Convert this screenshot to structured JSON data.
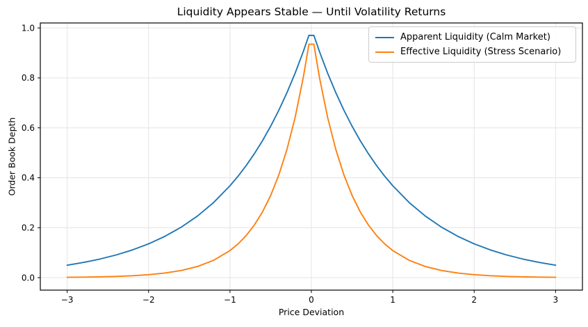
{
  "chart_data": {
    "type": "line",
    "title": "Liquidity Appears Stable — Until Volatility Returns",
    "xlabel": "Price Deviation",
    "ylabel": "Order Book Depth",
    "xlim": [
      -3.33,
      3.33
    ],
    "ylim": [
      -0.05,
      1.02
    ],
    "xticks": [
      -3,
      -2,
      -1,
      0,
      1,
      2,
      3
    ],
    "xtick_labels": [
      "−3",
      "−2",
      "−1",
      "0",
      "1",
      "2",
      "3"
    ],
    "yticks": [
      0.0,
      0.2,
      0.4,
      0.6,
      0.8,
      1.0
    ],
    "ytick_labels": [
      "0.0",
      "0.2",
      "0.4",
      "0.6",
      "0.8",
      "1.0"
    ],
    "grid": true,
    "grid_color": "#e4e4e4",
    "spine_color": "#000000",
    "tick_color": "#000000",
    "legend_position": "upper right",
    "x": [
      -3.0,
      -2.8,
      -2.6,
      -2.4,
      -2.2,
      -2.0,
      -1.8,
      -1.6,
      -1.4,
      -1.2,
      -1.0,
      -0.9,
      -0.8,
      -0.7,
      -0.6,
      -0.5,
      -0.4,
      -0.3,
      -0.2,
      -0.1,
      -0.0303,
      0.0303,
      0.1,
      0.2,
      0.3,
      0.4,
      0.5,
      0.6,
      0.7,
      0.8,
      0.9,
      1.0,
      1.2,
      1.4,
      1.6,
      1.8,
      2.0,
      2.2,
      2.4,
      2.6,
      2.8,
      3.0
    ],
    "series": [
      {
        "name": "Apparent Liquidity (Calm Market)",
        "color": "#1f77b4",
        "values": [
          0.0498,
          0.0608,
          0.0743,
          0.0907,
          0.1108,
          0.1353,
          0.1653,
          0.2019,
          0.2466,
          0.3012,
          0.3679,
          0.4066,
          0.4493,
          0.4966,
          0.5488,
          0.6065,
          0.6703,
          0.7408,
          0.8187,
          0.9048,
          0.9702,
          0.9702,
          0.9048,
          0.8187,
          0.7408,
          0.6703,
          0.6065,
          0.5488,
          0.4966,
          0.4493,
          0.4066,
          0.3679,
          0.3012,
          0.2466,
          0.2019,
          0.1653,
          0.1353,
          0.1108,
          0.0907,
          0.0743,
          0.0608,
          0.0498
        ]
      },
      {
        "name": "Effective Liquidity (Stress Scenario)",
        "color": "#ff7f0e",
        "values": [
          0.0013,
          0.002,
          0.0031,
          0.0048,
          0.0075,
          0.0117,
          0.0183,
          0.0286,
          0.0446,
          0.0695,
          0.1084,
          0.1353,
          0.169,
          0.2111,
          0.2636,
          0.3292,
          0.4111,
          0.5134,
          0.6412,
          0.8007,
          0.9349,
          0.9349,
          0.8007,
          0.6412,
          0.5134,
          0.4111,
          0.3292,
          0.2636,
          0.2111,
          0.169,
          0.1353,
          0.1084,
          0.0695,
          0.0446,
          0.0286,
          0.0183,
          0.0117,
          0.0075,
          0.0048,
          0.0031,
          0.002,
          0.0013
        ]
      }
    ]
  }
}
